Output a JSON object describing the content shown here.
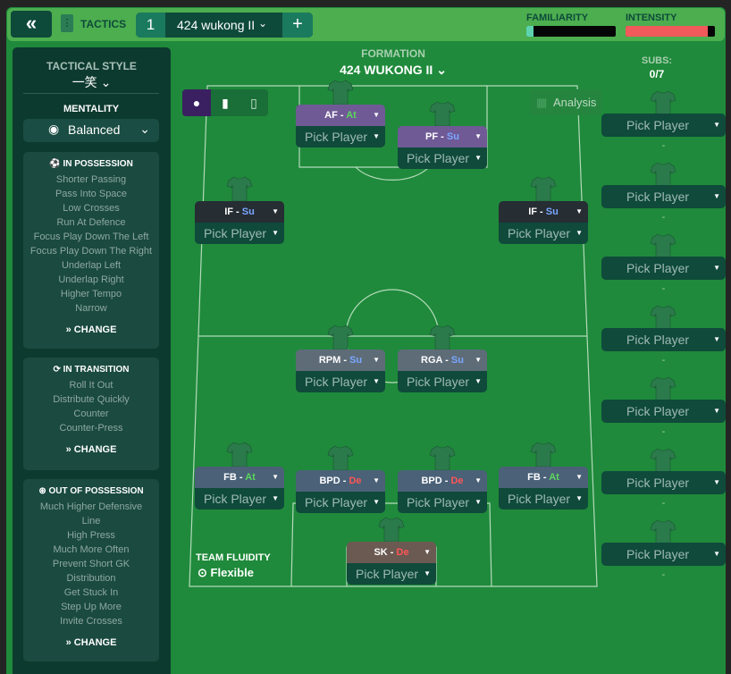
{
  "topbar": {
    "back_icon": "double-chevron-left",
    "tactics_label": "TACTICS",
    "tactic_number": "1",
    "tactic_name": "424 wukong II",
    "add_label": "+",
    "familiarity_label": "FAMILIARITY",
    "familiarity_level": 0.08,
    "familiarity_color": "#5fd3b0",
    "intensity_label": "INTENSITY",
    "intensity_level": 0.92,
    "intensity_color": "#f05a5a"
  },
  "left": {
    "tactical_style_label": "TACTICAL STYLE",
    "tactical_style": "一笑",
    "mentality_label": "MENTALITY",
    "mentality": "Balanced",
    "in_possession": {
      "title": "IN POSSESSION",
      "items": [
        "Shorter Passing",
        "Pass Into Space",
        "Low Crosses",
        "Run At Defence",
        "Focus Play Down The Left",
        "Focus Play Down The Right",
        "Underlap Left",
        "Underlap Right",
        "Higher Tempo",
        "Narrow"
      ],
      "change": "CHANGE"
    },
    "in_transition": {
      "title": "IN TRANSITION",
      "items": [
        "Roll It Out",
        "Distribute Quickly",
        "Counter",
        "Counter-Press"
      ],
      "change": "CHANGE"
    },
    "out_of_possession": {
      "title": "OUT OF POSSESSION",
      "items": [
        "Much Higher Defensive",
        "Line",
        "High Press",
        "Much More Often",
        "Prevent Short GK",
        "Distribution",
        "Get Stuck In",
        "Step Up More",
        "Invite Crosses"
      ],
      "change": "CHANGE"
    }
  },
  "formation": {
    "label": "FORMATION",
    "name": "424 WUKONG II"
  },
  "subs": {
    "label": "SUBS:",
    "count": "0/7",
    "pick": "Pick Player",
    "dash": "-"
  },
  "analysis": "Analysis",
  "pick_player": "Pick Player",
  "slots": [
    {
      "role": "AF",
      "duty": "At"
    },
    {
      "role": "PF",
      "duty": "Su"
    },
    {
      "role": "IF",
      "duty": "Su"
    },
    {
      "role": "IF",
      "duty": "Su"
    },
    {
      "role": "RPM",
      "duty": "Su"
    },
    {
      "role": "RGA",
      "duty": "Su"
    },
    {
      "role": "FB",
      "duty": "At"
    },
    {
      "role": "BPD",
      "duty": "De"
    },
    {
      "role": "BPD",
      "duty": "De"
    },
    {
      "role": "FB",
      "duty": "At"
    },
    {
      "role": "SK",
      "duty": "De"
    }
  ],
  "fluidity": {
    "label": "TEAM FLUIDITY",
    "value": "Flexible"
  },
  "colors": {
    "attack": "#5cd65c",
    "support": "#7aa7ff",
    "defend": "#ff5555"
  }
}
